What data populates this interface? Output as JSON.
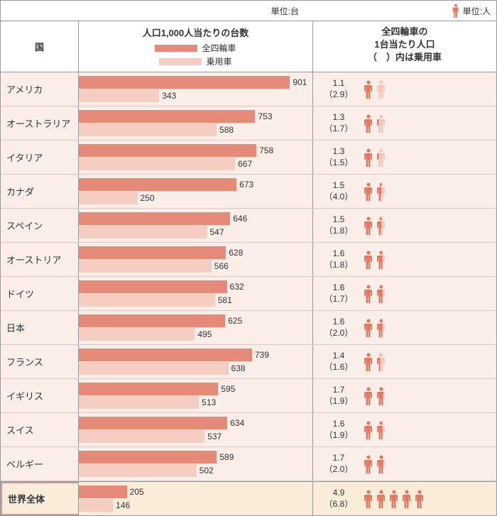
{
  "units": {
    "bars": "単位:台",
    "people": "単位:人"
  },
  "header": {
    "country": "国",
    "bars_title": "人口1,000人当たりの台数",
    "legend_all": "全四輪車",
    "legend_passenger": "乗用車",
    "people_title_l1": "全四輪車の",
    "people_title_l2": "1台当たり人口",
    "people_title_l3": "（　）内は乗用車"
  },
  "colors": {
    "bar_all": "#e38b78",
    "bar_passenger": "#f5cdc2",
    "row_bg": "#fbeee8",
    "person_dark": "#e07860",
    "person_light": "#f3c9bd",
    "border": "#999999",
    "total_bg": "#f9ecd9",
    "text": "#333333"
  },
  "chart": {
    "max_value": 1000,
    "bar_area_width": 330,
    "person_width": 16,
    "person_height": 28
  },
  "rows": [
    {
      "country": "アメリカ",
      "all": 901,
      "passenger": 343,
      "per_all": "1.1",
      "per_passenger": "（2.9）",
      "icons": [
        1,
        0.1
      ]
    },
    {
      "country": "オーストラリア",
      "all": 753,
      "passenger": 588,
      "per_all": "1.3",
      "per_passenger": "（1.7）",
      "icons": [
        1,
        0.3
      ]
    },
    {
      "country": "イタリア",
      "all": 758,
      "passenger": 667,
      "per_all": "1.3",
      "per_passenger": "（1.5）",
      "icons": [
        1,
        0.3
      ]
    },
    {
      "country": "カナダ",
      "all": 673,
      "passenger": 250,
      "per_all": "1.5",
      "per_passenger": "（4.0）",
      "icons": [
        1,
        0.5
      ]
    },
    {
      "country": "スペイン",
      "all": 646,
      "passenger": 547,
      "per_all": "1.5",
      "per_passenger": "（1.8）",
      "icons": [
        1,
        0.5
      ]
    },
    {
      "country": "オーストリア",
      "all": 628,
      "passenger": 566,
      "per_all": "1.6",
      "per_passenger": "（1.8）",
      "icons": [
        1,
        0.6
      ]
    },
    {
      "country": "ドイツ",
      "all": 632,
      "passenger": 581,
      "per_all": "1.6",
      "per_passenger": "（1.7）",
      "icons": [
        1,
        0.6
      ]
    },
    {
      "country": "日本",
      "all": 625,
      "passenger": 495,
      "per_all": "1.6",
      "per_passenger": "（2.0）",
      "icons": [
        1,
        0.6
      ]
    },
    {
      "country": "フランス",
      "all": 739,
      "passenger": 638,
      "per_all": "1.4",
      "per_passenger": "（1.6）",
      "icons": [
        1,
        0.4
      ]
    },
    {
      "country": "イギリス",
      "all": 595,
      "passenger": 513,
      "per_all": "1.7",
      "per_passenger": "（1.9）",
      "icons": [
        1,
        0.7
      ]
    },
    {
      "country": "スイス",
      "all": 634,
      "passenger": 537,
      "per_all": "1.6",
      "per_passenger": "（1.9）",
      "icons": [
        1,
        0.6
      ]
    },
    {
      "country": "ベルギー",
      "all": 589,
      "passenger": 502,
      "per_all": "1.7",
      "per_passenger": "（2.0）",
      "icons": [
        1,
        0.7
      ]
    }
  ],
  "total": {
    "country": "世界全体",
    "all": 205,
    "passenger": 146,
    "per_all": "4.9",
    "per_passenger": "（6.8）",
    "icons": [
      1,
      1,
      1,
      1,
      0.9
    ]
  }
}
